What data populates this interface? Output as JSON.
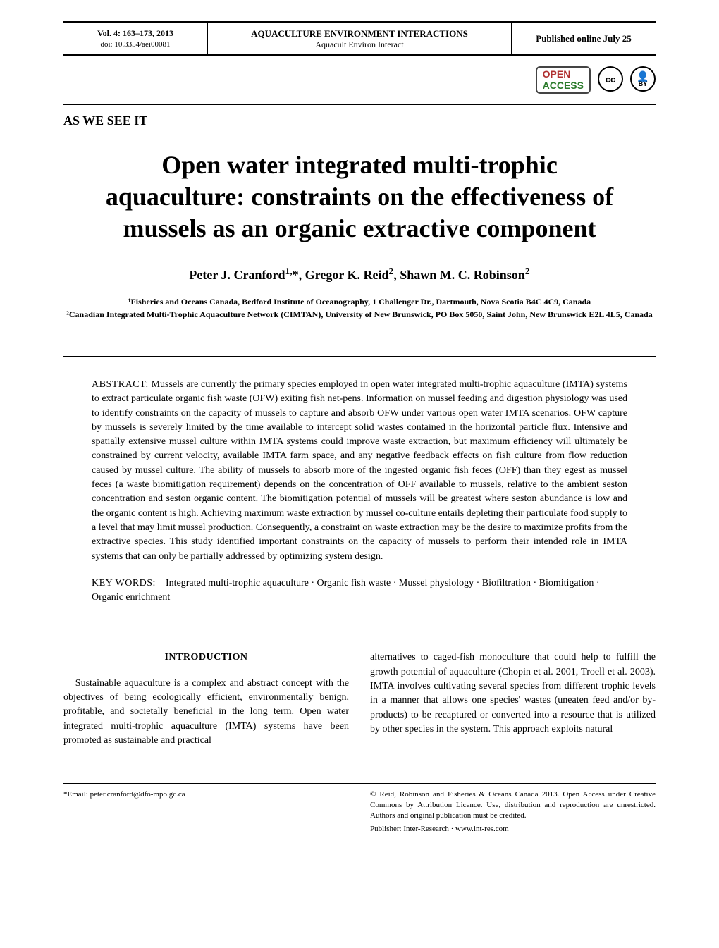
{
  "topbar": {
    "vol": "Vol. 4: 163–173, 2013",
    "doi": "doi: 10.3354/aei00081",
    "journal_upper": "AQUACULTURE ENVIRONMENT INTERACTIONS",
    "journal_lower": "Aquacult Environ Interact",
    "published": "Published online July 25"
  },
  "badges": {
    "open1": "OPEN",
    "open2": "ACCESS",
    "cc": "cc",
    "by_glyph": "🄯",
    "by_label": "BY"
  },
  "section_label": "AS WE SEE IT",
  "title": "Open water integrated multi-trophic aquaculture: constraints on the effectiveness of mussels as an organic extractive component",
  "authors_html": "Peter J. Cranford<sup>1,</sup>*, Gregor K. Reid<sup>2</sup>, Shawn M. C. Robinson<sup>2</sup>",
  "affiliations": {
    "a1": "¹Fisheries and Oceans Canada, Bedford Institute of Oceanography, 1 Challenger Dr., Dartmouth, Nova Scotia B4C 4C9, Canada",
    "a2": "²Canadian Integrated Multi-Trophic Aquaculture Network (CIMTAN), University of New Brunswick, PO Box 5050, Saint John, New Brunswick E2L 4L5, Canada"
  },
  "abstract_label": "ABSTRACT:",
  "abstract": "Mussels are currently the primary species employed in open water integrated multi-trophic aquaculture (IMTA) systems to extract particulate organic fish waste (OFW) exiting fish net-pens. Information on mussel feeding and digestion physiology was used to identify constraints on the capacity of mussels to capture and absorb OFW under various open water IMTA scenarios. OFW capture by mussels is severely limited by the time available to intercept solid wastes contained in the horizontal particle flux. Intensive and spatially extensive mussel culture within IMTA systems could improve waste extraction, but maximum efficiency will ultimately be constrained by current velocity, available IMTA farm space, and any negative feedback effects on fish culture from flow reduction caused by mussel culture. The ability of mussels to absorb more of the ingested organic fish feces (OFF) than they egest as mussel feces (a waste biomitigation requirement) depends on the concentration of OFF available to mussels, relative to the ambient seston concentration and seston organic content. The biomitigation potential of mussels will be greatest where seston abundance is low and the organic content is high. Achieving maximum waste extraction by mussel co-culture entails depleting their particulate food supply to a level that may limit mussel production. Consequently, a constraint on waste extraction may be the desire to maximize profits from the extractive species. This study identified important constraints on the capacity of mussels to perform their intended role in IMTA systems that can only be partially addressed by optimizing system design.",
  "keywords_label": "KEY WORDS:",
  "keywords": "Integrated multi-trophic aquaculture · Organic fish waste · Mussel physiology · Biofiltration · Biomitigation · Organic enrichment",
  "introduction": {
    "heading": "INTRODUCTION",
    "left_para": "Sustainable aquaculture is a complex and abstract concept with the objectives of being ecologically efficient, environmentally benign, profitable, and societally beneficial in the long term. Open water integrated multi-trophic aquaculture (IMTA) systems have been promoted as sustainable and practical",
    "right_para": "alternatives to caged-fish monoculture that could help to fulfill the growth potential of aquaculture (Chopin et al. 2001, Troell et al. 2003). IMTA involves cultivating several species from different trophic levels in a manner that allows one species' wastes (uneaten feed and/or by-products) to be recaptured or converted into a resource that is utilized by other species in the system. This approach exploits natural"
  },
  "footer": {
    "email_line": "*Email: peter.cranford@dfo-mpo.gc.ca",
    "copyright": "© Reid, Robinson and Fisheries & Oceans Canada 2013. Open Access under Creative Commons by Attribution Licence. Use, distribution and reproduction are unrestricted. Authors and original publication must be credited.",
    "publisher": "Publisher: Inter-Research · www.int-res.com"
  }
}
